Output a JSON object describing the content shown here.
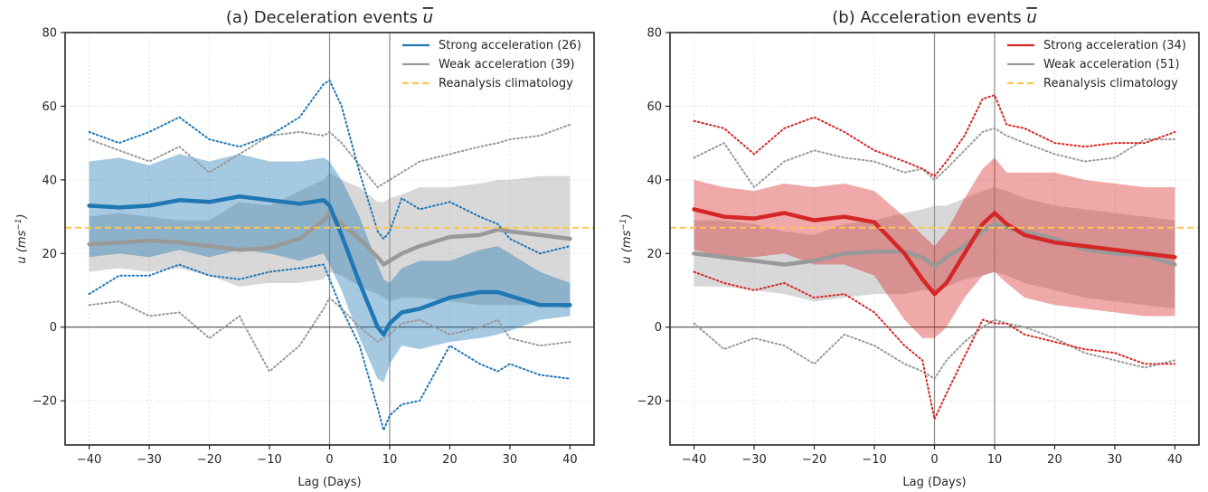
{
  "chart_data": [
    {
      "type": "line",
      "title": "(a) Deceleration events",
      "title_symbol": "u",
      "xlabel": "Lag (Days)",
      "ylabel": "u (ms",
      "ylabel_sup": "−1",
      "ylabel_close": ")",
      "xlim": [
        -44,
        44
      ],
      "ylim": [
        -32,
        80
      ],
      "xticks": [
        -40,
        -30,
        -20,
        -10,
        0,
        10,
        20,
        30,
        40
      ],
      "yticks": [
        -20,
        0,
        20,
        40,
        60,
        80
      ],
      "grid": true,
      "legend_position": "top-right",
      "reference_lines": {
        "vertical": [
          0,
          10
        ],
        "horizontal": [
          0
        ]
      },
      "x": [
        -40,
        -35,
        -30,
        -25,
        -20,
        -15,
        -10,
        -5,
        -1,
        0,
        2,
        5,
        8,
        9,
        10,
        12,
        15,
        20,
        25,
        28,
        30,
        35,
        40
      ],
      "series": [
        {
          "name": "Strong acceleration (26)",
          "color": "#1f77b4",
          "mean": [
            33,
            32.5,
            33,
            34.5,
            34,
            35.5,
            34.5,
            33.5,
            34.5,
            33,
            25,
            12,
            0,
            -2,
            1,
            4,
            5,
            8,
            9.5,
            9.5,
            8.5,
            6,
            6
          ],
          "spread_low": [
            19,
            20,
            19,
            21,
            19,
            21,
            20,
            18,
            20,
            17,
            10,
            -3,
            -14,
            -15,
            -10,
            -5,
            -6,
            -4,
            -3,
            -2,
            -1,
            2,
            3
          ],
          "spread_high": [
            45,
            46,
            44,
            47,
            45,
            47,
            45,
            45,
            46,
            45,
            40,
            30,
            17,
            13,
            12,
            16,
            18,
            18,
            21,
            22,
            20,
            15,
            12
          ],
          "outer_high": [
            53,
            50,
            53,
            57,
            51,
            49,
            52,
            57,
            66,
            67,
            60,
            42,
            26,
            24,
            26,
            35,
            32,
            34,
            30,
            28,
            24,
            20,
            22
          ],
          "outer_low": [
            9,
            14,
            14,
            17,
            14,
            13,
            15,
            16,
            17,
            13,
            5,
            -5,
            -22,
            -28,
            -24,
            -21,
            -20,
            -5,
            -10,
            -12,
            -10,
            -13,
            -14
          ]
        },
        {
          "name": "Weak acceleration (39)",
          "color": "#999999",
          "mean": [
            22.5,
            23,
            23.5,
            23,
            22,
            21,
            21.5,
            24,
            29,
            31,
            28,
            24,
            19,
            17,
            18,
            20,
            22,
            24.5,
            25,
            26.5,
            26,
            25,
            24
          ],
          "spread_low": [
            15,
            16,
            15,
            16,
            14,
            11,
            12,
            12,
            13,
            15,
            14,
            11,
            9,
            8,
            7,
            8,
            8,
            7,
            6,
            6,
            6,
            6,
            5
          ],
          "spread_high": [
            30,
            31,
            30,
            29,
            29,
            34,
            33,
            37,
            40,
            42,
            40,
            38,
            34,
            34,
            35,
            36,
            38,
            38,
            39,
            40,
            40,
            41,
            41
          ],
          "outer_high": [
            51,
            48,
            45,
            49,
            42,
            47,
            52,
            53,
            52,
            53,
            50,
            44,
            38,
            39,
            40,
            42,
            45,
            47,
            49,
            50,
            51,
            52,
            55
          ],
          "outer_low": [
            6,
            7,
            3,
            4,
            -3,
            3,
            -12,
            -5,
            5,
            8,
            5,
            0,
            -4,
            -3,
            -2,
            1,
            2,
            -2,
            0,
            2,
            -3,
            -5,
            -4
          ]
        },
        {
          "name": "Reanalysis climatology",
          "color": "#fec44f",
          "constant": 27
        }
      ]
    },
    {
      "type": "line",
      "title": "(b) Acceleration events",
      "title_symbol": "u",
      "xlabel": "Lag (Days)",
      "ylabel": "u (ms",
      "ylabel_sup": "−1",
      "ylabel_close": ")",
      "xlim": [
        -44,
        44
      ],
      "ylim": [
        -32,
        80
      ],
      "xticks": [
        -40,
        -30,
        -20,
        -10,
        0,
        10,
        20,
        30,
        40
      ],
      "yticks": [
        -20,
        0,
        20,
        40,
        60,
        80
      ],
      "grid": true,
      "legend_position": "top-right",
      "reference_lines": {
        "vertical": [
          0,
          10
        ],
        "horizontal": [
          0
        ]
      },
      "x": [
        -40,
        -35,
        -30,
        -25,
        -20,
        -15,
        -10,
        -5,
        -2,
        0,
        2,
        5,
        8,
        10,
        12,
        15,
        20,
        25,
        30,
        35,
        40
      ],
      "series": [
        {
          "name": "Strong acceleration (34)",
          "color": "#d62728",
          "mean": [
            32,
            30,
            29.5,
            31,
            29,
            30,
            28.5,
            20,
            13,
            9,
            12,
            20,
            28,
            31,
            28,
            25,
            23,
            22,
            21,
            20,
            19
          ],
          "spread_low": [
            21,
            19,
            19,
            20,
            17,
            17,
            14,
            2,
            -3,
            -3,
            0,
            8,
            14,
            15,
            12,
            8,
            6,
            5,
            4,
            3,
            3
          ],
          "spread_high": [
            40,
            38,
            37,
            39,
            38,
            39,
            37,
            30,
            25,
            22,
            26,
            35,
            43,
            46,
            42,
            42,
            42,
            40,
            39,
            38,
            38
          ],
          "outer_high": [
            56,
            54,
            47,
            54,
            57,
            53,
            48,
            45,
            43,
            41,
            45,
            52,
            62,
            63,
            55,
            54,
            50,
            49,
            50,
            50,
            53
          ],
          "outer_low": [
            15,
            12,
            10,
            12,
            8,
            9,
            4,
            -5,
            -9,
            -25,
            -18,
            -8,
            2,
            1,
            1,
            -2,
            -4,
            -6,
            -7,
            -10,
            -10
          ]
        },
        {
          "name": "Weak acceleration (51)",
          "color": "#999999",
          "mean": [
            20,
            19,
            18,
            17,
            18,
            20,
            20.5,
            20.5,
            19,
            16.5,
            19,
            22,
            26,
            28,
            27,
            26,
            24,
            21,
            20,
            19.5,
            17
          ],
          "spread_low": [
            11,
            11,
            10,
            9,
            7,
            8,
            9,
            9,
            10,
            10,
            11,
            13,
            14,
            15,
            14,
            12,
            10,
            8,
            7,
            6,
            5
          ],
          "spread_high": [
            29,
            29,
            28,
            26,
            25,
            28,
            29,
            31,
            32,
            33,
            33,
            35,
            37,
            38,
            37,
            35,
            33,
            32,
            31,
            30,
            29
          ],
          "outer_high": [
            46,
            50,
            38,
            45,
            48,
            46,
            45,
            42,
            43,
            40,
            43,
            48,
            53,
            54,
            52,
            50,
            47,
            45,
            46,
            51,
            51
          ],
          "outer_low": [
            1,
            -6,
            -3,
            -5,
            -10,
            -2,
            -5,
            -10,
            -12,
            -14,
            -9,
            -4,
            0,
            2,
            1,
            0,
            -3,
            -7,
            -9,
            -11,
            -9
          ]
        },
        {
          "name": "Reanalysis climatology",
          "color": "#fec44f",
          "constant": 27
        }
      ]
    }
  ]
}
